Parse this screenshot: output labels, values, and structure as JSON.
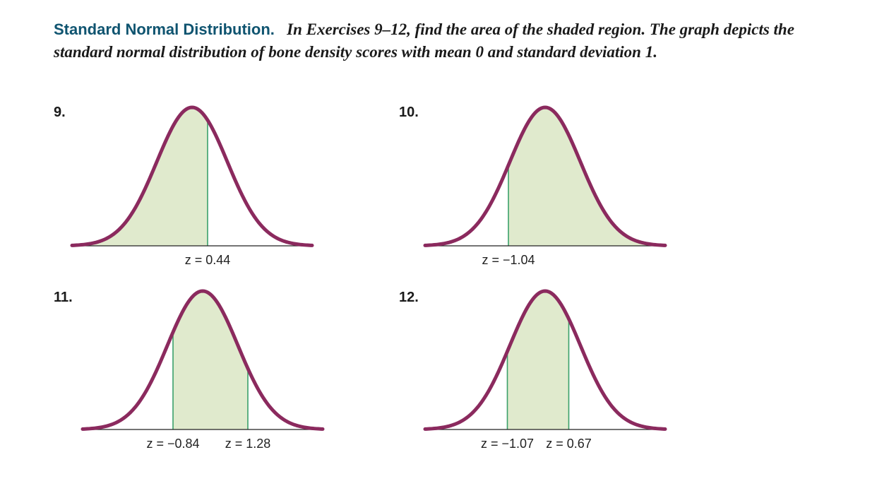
{
  "intro": {
    "heading": "Standard Normal Distribution.",
    "instruction": "In Exercises 9–12, find the area of the shaded region. The graph depicts the standard normal distribution of bone density scores with mean 0 and standard deviation 1."
  },
  "colors": {
    "heading": "#0f5470",
    "curve": "#8b2a5e",
    "shade": "#e0eacd",
    "boundary": "#3aa06a"
  },
  "exercises": [
    {
      "number": "9.",
      "shade_from": null,
      "shade_to": 0.44,
      "labels": [
        "z = 0.44"
      ]
    },
    {
      "number": "10.",
      "shade_from": -1.04,
      "shade_to": null,
      "labels": [
        "z = −1.04"
      ]
    },
    {
      "number": "11.",
      "shade_from": -0.84,
      "shade_to": 1.28,
      "labels": [
        "z = −0.84",
        "z = 1.28"
      ]
    },
    {
      "number": "12.",
      "shade_from": -1.07,
      "shade_to": 0.67,
      "labels": [
        "z = −1.07",
        "z = 0.67"
      ]
    }
  ]
}
